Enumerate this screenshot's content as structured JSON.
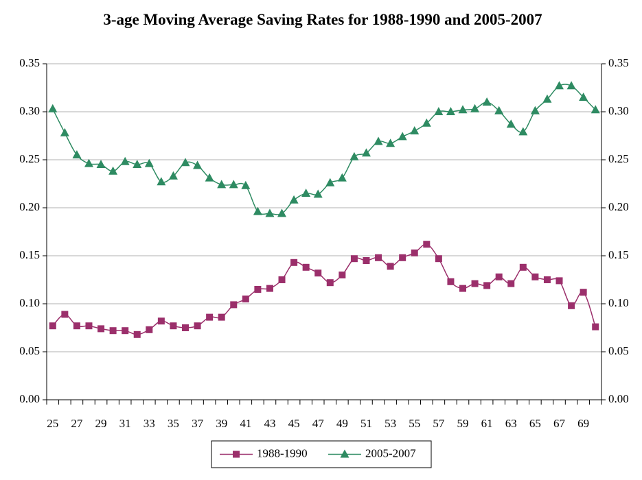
{
  "chart_data": {
    "type": "line",
    "title": "3-age Moving Average Saving Rates for 1988-1990 and 2005-2007",
    "categories": [
      "25",
      null,
      "27",
      null,
      "29",
      null,
      "31",
      null,
      "33",
      null,
      "35",
      null,
      "37",
      null,
      "39",
      null,
      "41",
      null,
      "43",
      null,
      "45",
      null,
      "47",
      null,
      "49",
      null,
      "51",
      null,
      "53",
      null,
      "55",
      null,
      "57",
      null,
      "59",
      null,
      "61",
      null,
      "63",
      null,
      "65",
      null,
      "67",
      null,
      "69",
      null
    ],
    "series": [
      {
        "name": "1988-1990",
        "color": "#9b2f6b",
        "marker": "square",
        "values": [
          0.077,
          0.089,
          0.077,
          0.077,
          0.074,
          0.072,
          0.072,
          0.068,
          0.073,
          0.082,
          0.077,
          0.075,
          0.077,
          0.086,
          0.086,
          0.099,
          0.105,
          0.115,
          0.116,
          0.125,
          0.143,
          0.138,
          0.132,
          0.122,
          0.13,
          0.147,
          0.145,
          0.148,
          0.139,
          0.148,
          0.153,
          0.162,
          0.147,
          0.123,
          0.116,
          0.121,
          0.119,
          0.128,
          0.121,
          0.138,
          0.128,
          0.125,
          0.124,
          0.098,
          0.112,
          0.076
        ]
      },
      {
        "name": "2005-2007",
        "color": "#2e8b62",
        "marker": "triangle",
        "values": [
          0.303,
          0.278,
          0.255,
          0.246,
          0.245,
          0.238,
          0.248,
          0.245,
          0.246,
          0.227,
          0.233,
          0.247,
          0.244,
          0.231,
          0.224,
          0.224,
          0.223,
          0.196,
          0.194,
          0.194,
          0.208,
          0.215,
          0.214,
          0.226,
          0.231,
          0.253,
          0.257,
          0.269,
          0.267,
          0.274,
          0.28,
          0.288,
          0.3,
          0.3,
          0.302,
          0.303,
          0.31,
          0.301,
          0.287,
          0.279,
          0.301,
          0.313,
          0.327,
          0.327,
          0.315,
          0.302
        ]
      }
    ],
    "ylim": [
      0,
      0.35
    ],
    "yticks": [
      {
        "value": 0,
        "label": "0.00"
      },
      {
        "value": 0.05,
        "label": "0.05"
      },
      {
        "value": 0.1,
        "label": "0.10"
      },
      {
        "value": 0.15,
        "label": "0.15"
      },
      {
        "value": 0.2,
        "label": "0.20"
      },
      {
        "value": 0.25,
        "label": "0.25"
      },
      {
        "value": 0.3,
        "label": "0.30"
      },
      {
        "value": 0.35,
        "label": "0.35"
      }
    ],
    "y2lim": [
      0,
      0.35
    ],
    "y2ticks": [
      {
        "value": 0,
        "label": "0.00"
      },
      {
        "value": 0.05,
        "label": "0.05"
      },
      {
        "value": 0.1,
        "label": "0.10"
      },
      {
        "value": 0.15,
        "label": "0.15"
      },
      {
        "value": 0.2,
        "label": "0.20"
      },
      {
        "value": 0.25,
        "label": "0.25"
      },
      {
        "value": 0.3,
        "label": "0.30"
      },
      {
        "value": 0.35,
        "label": "0.35"
      }
    ],
    "grid": true,
    "legend": "bottom"
  }
}
